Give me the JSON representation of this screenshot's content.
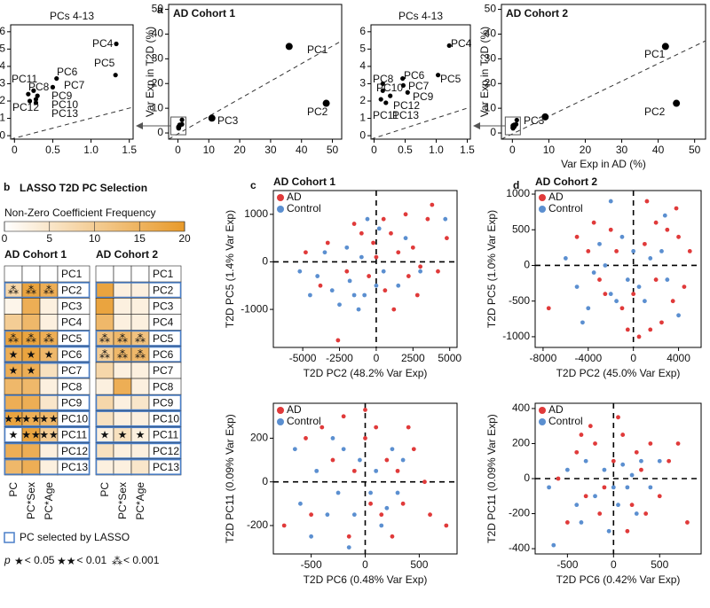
{
  "chart_data": [
    {
      "type": "scatter",
      "title": "PCs 4-13",
      "xlim": [
        -0.05,
        1.55
      ],
      "ylim": [
        -0.2,
        6.4
      ],
      "xticks": [
        0,
        0.5,
        {
          "value": 1,
          "label": "1.0"
        },
        1.5
      ],
      "yticks": [
        0,
        1,
        2,
        3,
        4,
        5,
        6
      ],
      "series": [
        {
          "color": "#000000",
          "x": [
            1.33,
            1.32,
            0.55,
            0.5,
            0.25,
            0.3,
            0.28,
            0.18,
            0.2,
            0.28
          ],
          "y": [
            5.3,
            3.5,
            3.3,
            2.8,
            2.6,
            2.3,
            2.1,
            2.4,
            2.0,
            1.9
          ],
          "labels": [
            "PC4",
            "PC5",
            "PC6",
            "PC7",
            "PC8",
            "PC9",
            "PC10",
            "PC11",
            "PC12",
            "PC13"
          ]
        }
      ]
    },
    {
      "type": "scatter",
      "panel": "a",
      "title": "AD Cohort 1",
      "ylabel": "Var Exp in T2D (%)",
      "xlim": [
        -3,
        53
      ],
      "ylim": [
        -2.5,
        52
      ],
      "xticks": [
        0,
        10,
        20,
        30,
        40,
        50
      ],
      "yticks": [
        0,
        10,
        20,
        30,
        40,
        50
      ],
      "series": [
        {
          "color": "#000000",
          "x": [
            36,
            48,
            11
          ],
          "y": [
            35,
            12,
            6
          ],
          "labels": [
            "PC1",
            "PC2",
            "PC3"
          ]
        }
      ]
    },
    {
      "type": "scatter",
      "title": "PCs 4-13",
      "xlim": [
        -0.05,
        1.55
      ],
      "ylim": [
        -0.2,
        6.4
      ],
      "xticks": [
        0,
        0.5,
        {
          "value": 1,
          "label": "1.0"
        },
        1.5
      ],
      "yticks": [
        0,
        1,
        2,
        3,
        4,
        5,
        6
      ],
      "series": [
        {
          "color": "#000000",
          "x": [
            1.21,
            1.03,
            0.46,
            0.47,
            0.14,
            0.54,
            0.14,
            0.11,
            0.26,
            0.19
          ],
          "y": [
            5.2,
            3.5,
            3.3,
            2.9,
            3.0,
            2.5,
            2.6,
            2.1,
            2.3,
            1.9
          ],
          "labels": [
            "PC4",
            "PC5",
            "PC6",
            "PC7",
            "PC8",
            "PC9",
            "PC10",
            "PC11",
            "PC12",
            "PC13"
          ]
        }
      ]
    },
    {
      "type": "scatter",
      "title": "AD Cohort 2",
      "xlabel": "Var Exp in AD (%)",
      "ylabel": "Var Exp in T2D (%)",
      "xlim": [
        -3,
        53
      ],
      "ylim": [
        -2.5,
        52
      ],
      "xticks": [
        0,
        10,
        20,
        30,
        40,
        50
      ],
      "yticks": [
        0,
        10,
        20,
        30,
        40,
        50
      ],
      "series": [
        {
          "color": "#000000",
          "x": [
            42,
            45,
            9
          ],
          "y": [
            35,
            12,
            6.5
          ],
          "labels": [
            "PC1",
            "PC2",
            "PC3"
          ]
        }
      ]
    },
    {
      "type": "heatmap",
      "panel": "b",
      "title": "LASSO T2D PC Selection",
      "colorbar_title": "Non-Zero Coefficient Frequency",
      "colors": [
        "#ffffff",
        "#e89a2a"
      ],
      "clim": [
        0,
        20
      ],
      "cticks": [
        0,
        5,
        10,
        15,
        20
      ],
      "selection_color": "#4a7fc8",
      "columns": [
        "PC",
        "PC*Sex",
        "PC*Age"
      ],
      "groups": [
        {
          "name": "AD Cohort 1",
          "rows": [
            "PC1",
            "PC2",
            "PC3",
            "PC4",
            "PC5",
            "PC6",
            "PC7",
            "PC8",
            "PC9",
            "PC10",
            "PC11",
            "PC12",
            "PC13"
          ],
          "values": [
            [
              0,
              0,
              0
            ],
            [
              8,
              18,
              16
            ],
            [
              2,
              16,
              3
            ],
            [
              10,
              14,
              3
            ],
            [
              18,
              18,
              16
            ],
            [
              16,
              18,
              14
            ],
            [
              16,
              16,
              6
            ],
            [
              14,
              14,
              3
            ],
            [
              16,
              16,
              5
            ],
            [
              18,
              16,
              14
            ],
            [
              0,
              18,
              10
            ],
            [
              16,
              16,
              3
            ],
            [
              14,
              16,
              3
            ]
          ],
          "stars": [
            [
              null,
              null,
              null
            ],
            [
              "⁂",
              "⁂",
              "⁂"
            ],
            [
              null,
              null,
              null
            ],
            [
              null,
              null,
              null
            ],
            [
              "⁂",
              "⁂",
              "⁂"
            ],
            [
              "★",
              "★",
              "★"
            ],
            [
              "★",
              "★",
              null
            ],
            [
              null,
              null,
              null
            ],
            [
              null,
              null,
              null
            ],
            [
              "★★",
              "★★",
              "★★"
            ],
            [
              "★",
              "★★",
              "★★"
            ],
            [
              null,
              null,
              null
            ],
            [
              null,
              null,
              null
            ]
          ],
          "selected": [
            false,
            true,
            false,
            false,
            true,
            true,
            true,
            false,
            true,
            true,
            true,
            true,
            true
          ]
        },
        {
          "name": "AD Cohort 2",
          "rows": [
            "PC1",
            "PC2",
            "PC3",
            "PC4",
            "PC5",
            "PC6",
            "PC7",
            "PC8",
            "PC9",
            "PC10",
            "PC11",
            "PC12",
            "PC13"
          ],
          "values": [
            [
              0,
              0,
              0
            ],
            [
              18,
              3,
              3
            ],
            [
              18,
              3,
              3
            ],
            [
              14,
              3,
              3
            ],
            [
              12,
              14,
              12
            ],
            [
              10,
              14,
              14
            ],
            [
              8,
              3,
              3
            ],
            [
              3,
              16,
              3
            ],
            [
              8,
              3,
              5
            ],
            [
              6,
              3,
              3
            ],
            [
              3,
              6,
              3
            ],
            [
              6,
              3,
              3
            ],
            [
              3,
              3,
              5
            ]
          ],
          "stars": [
            [
              null,
              null,
              null
            ],
            [
              null,
              null,
              null
            ],
            [
              null,
              null,
              null
            ],
            [
              null,
              null,
              null
            ],
            [
              "⁂",
              "⁂",
              "⁂"
            ],
            [
              "⁂",
              "⁂",
              "⁂"
            ],
            [
              null,
              null,
              null
            ],
            [
              null,
              null,
              null
            ],
            [
              null,
              null,
              null
            ],
            [
              null,
              null,
              null
            ],
            [
              "★",
              "★",
              "★"
            ],
            [
              null,
              null,
              null
            ],
            [
              null,
              null,
              null
            ]
          ],
          "selected": [
            false,
            true,
            false,
            false,
            true,
            true,
            false,
            false,
            true,
            true,
            true,
            true,
            true
          ]
        }
      ],
      "selection_legend": "PC selected by LASSO",
      "p_label": "p",
      "significance": {
        "symbols": [
          "★",
          "★★",
          "⁂"
        ],
        "labels": [
          "< 0.05",
          "< 0.01",
          "< 0.001"
        ]
      }
    },
    {
      "type": "scatter",
      "panel": "c",
      "title": "AD Cohort 1",
      "xlabel": "T2D PC2 (48.2% Var Exp)",
      "ylabel": "T2D PC5 (1.4% Var Exp)",
      "xlim": [
        -7000,
        5500
      ],
      "ylim": [
        -1800,
        1500
      ],
      "xticks": [
        -5000,
        -2500,
        0,
        2500,
        5000
      ],
      "yticks": [
        -1000,
        0,
        1000
      ],
      "zero_lines": true,
      "legend": true,
      "series": [
        {
          "name": "AD",
          "color": "#e03a3a",
          "x": [
            -2600,
            1200,
            -4800,
            -3300,
            -1000,
            500,
            2000,
            3500,
            4800,
            3000,
            1500,
            -500,
            0,
            2500,
            4200,
            -2000,
            1000,
            -1500,
            2800,
            3800,
            -3800,
            600,
            2200,
            -200
          ],
          "y": [
            -1650,
            -1000,
            200,
            400,
            600,
            900,
            1000,
            900,
            500,
            -100,
            200,
            -300,
            100,
            300,
            -200,
            -200,
            600,
            800,
            -700,
            1200,
            -500,
            -600,
            -300,
            400
          ]
        },
        {
          "name": "Control",
          "color": "#5b8fd0",
          "x": [
            -5200,
            -4500,
            -3000,
            -2500,
            -1800,
            -1200,
            -800,
            0,
            -3500,
            -2000,
            -1000,
            500,
            1500,
            2000,
            -600,
            4700,
            -4000,
            200,
            3000,
            -1500
          ],
          "y": [
            -200,
            -700,
            -600,
            -900,
            -400,
            -1000,
            -700,
            -500,
            200,
            300,
            100,
            -200,
            -500,
            500,
            900,
            900,
            -300,
            700,
            -200,
            -700
          ]
        }
      ]
    },
    {
      "type": "scatter",
      "xlabel": "T2D PC6 (0.48% Var Exp)",
      "ylabel": "T2D PC11 (0.09% Var Exp)",
      "xlim": [
        -850,
        850
      ],
      "ylim": [
        -330,
        360
      ],
      "xticks": [
        -500,
        0,
        500
      ],
      "yticks": [
        -200,
        0,
        200
      ],
      "zero_lines": true,
      "legend": true,
      "series": [
        {
          "name": "AD",
          "color": "#e03a3a",
          "x": [
            -750,
            -500,
            -400,
            -200,
            0,
            100,
            200,
            300,
            450,
            750,
            550,
            350,
            150,
            -100,
            -300,
            250,
            -550,
            50,
            400,
            -150,
            600,
            0
          ],
          "y": [
            -200,
            -150,
            250,
            300,
            200,
            250,
            100,
            50,
            150,
            -200,
            0,
            -100,
            -150,
            50,
            100,
            -250,
            200,
            -100,
            250,
            -250,
            -150,
            330
          ]
        },
        {
          "name": "Control",
          "color": "#5b8fd0",
          "x": [
            -600,
            -450,
            -350,
            -250,
            -200,
            -100,
            -50,
            50,
            100,
            150,
            250,
            300,
            -500,
            -300,
            -650,
            200,
            -150,
            350
          ],
          "y": [
            -100,
            50,
            -150,
            -50,
            150,
            -150,
            100,
            -50,
            50,
            -200,
            150,
            -50,
            -250,
            200,
            150,
            -120,
            -300,
            100
          ]
        }
      ]
    },
    {
      "type": "scatter",
      "panel": "d",
      "title": "AD Cohort 2",
      "xlabel": "T2D PC2 (45.0% Var Exp)",
      "ylabel": "T2D PC5 (1.0% Var Exp)",
      "xlim": [
        -8700,
        6000
      ],
      "ylim": [
        -1150,
        1050
      ],
      "xticks": [
        -8000,
        -4000,
        0,
        4000
      ],
      "yticks": [
        -1000,
        -500,
        0,
        500,
        1000
      ],
      "zero_lines": true,
      "legend": true,
      "series": [
        {
          "name": "AD",
          "color": "#e03a3a",
          "x": [
            -7500,
            -5000,
            -4000,
            -3000,
            -2000,
            -1000,
            0,
            1000,
            2000,
            3000,
            4000,
            5000,
            3500,
            2500,
            1500,
            4500,
            -1500,
            500,
            2000,
            3800,
            -500,
            -3500,
            1200,
            -2500
          ],
          "y": [
            -600,
            400,
            200,
            -200,
            500,
            -600,
            -400,
            300,
            600,
            500,
            400,
            200,
            -500,
            -800,
            -900,
            -300,
            200,
            -1000,
            -200,
            800,
            -900,
            600,
            900,
            -400
          ]
        },
        {
          "name": "Control",
          "color": "#5b8fd0",
          "x": [
            -6000,
            -5000,
            -4000,
            -3000,
            -2500,
            -2000,
            -1500,
            -1000,
            -500,
            0,
            500,
            1000,
            1500,
            2500,
            3000,
            4000,
            -4500,
            -2000,
            -3500,
            2800
          ],
          "y": [
            100,
            -300,
            -600,
            300,
            0,
            -400,
            -500,
            400,
            -200,
            200,
            -300,
            -500,
            100,
            200,
            -200,
            -700,
            -800,
            900,
            -100,
            700
          ]
        }
      ]
    },
    {
      "type": "scatter",
      "xlabel": "T2D PC6 (0.42% Var Exp)",
      "ylabel": "T2D PC11 (0.09% Var Exp)",
      "xlim": [
        -850,
        950
      ],
      "ylim": [
        -430,
        430
      ],
      "xticks": [
        -500,
        0,
        500
      ],
      "yticks": [
        -400,
        -200,
        0,
        200,
        400
      ],
      "zero_lines": true,
      "legend": true,
      "series": [
        {
          "name": "AD",
          "color": "#e03a3a",
          "x": [
            -500,
            -400,
            -300,
            -200,
            -100,
            0,
            100,
            200,
            300,
            400,
            500,
            600,
            800,
            700,
            -600,
            -250,
            150,
            350,
            -150,
            50,
            -350,
            250
          ],
          "y": [
            -250,
            150,
            -100,
            200,
            -50,
            100,
            250,
            -150,
            50,
            200,
            -100,
            100,
            -250,
            200,
            0,
            300,
            -300,
            -200,
            -200,
            350,
            250,
            150
          ]
        },
        {
          "name": "Control",
          "color": "#5b8fd0",
          "x": [
            -700,
            -500,
            -400,
            -300,
            -200,
            -100,
            0,
            50,
            100,
            150,
            200,
            250,
            300,
            400,
            -650,
            -50,
            500,
            -350
          ],
          "y": [
            -50,
            50,
            -150,
            100,
            -100,
            50,
            -50,
            -150,
            80,
            -50,
            20,
            -200,
            100,
            -50,
            -380,
            -300,
            100,
            -250
          ]
        }
      ]
    }
  ]
}
